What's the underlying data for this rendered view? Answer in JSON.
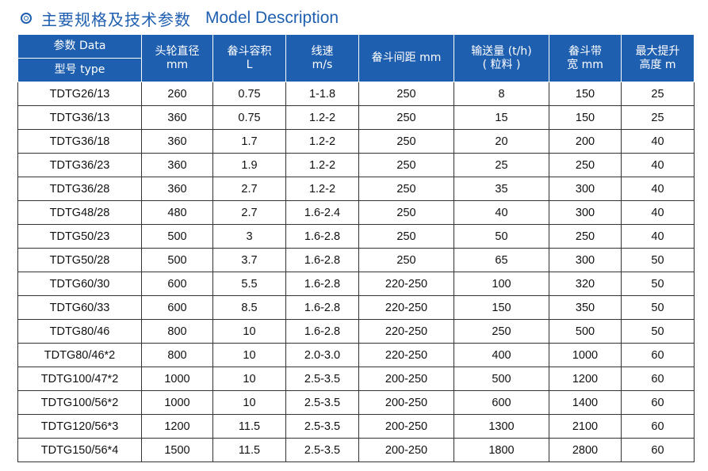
{
  "header": {
    "title_cn": "主要规格及技术参数",
    "title_en": "Model Description"
  },
  "table": {
    "corner_top": "参数 Data",
    "corner_bottom": "型号 type",
    "columns": [
      {
        "line1": "头轮直径",
        "line2": "mm"
      },
      {
        "line1": "畚斗容积",
        "line2": "L"
      },
      {
        "line1": "线速",
        "line2": "m/s"
      },
      {
        "line1": "畚斗间距 mm",
        "line2": ""
      },
      {
        "line1": "输送量 (t/h)",
        "line2": "( 粒料 )"
      },
      {
        "line1": "畚斗带",
        "line2": "宽 mm"
      },
      {
        "line1": "最大提升",
        "line2": "高度 m"
      }
    ],
    "rows": [
      [
        "TDTG26/13",
        "260",
        "0.75",
        "1-1.8",
        "250",
        "8",
        "150",
        "25"
      ],
      [
        "TDTG36/13",
        "360",
        "0.75",
        "1.2-2",
        "250",
        "15",
        "150",
        "25"
      ],
      [
        "TDTG36/18",
        "360",
        "1.7",
        "1.2-2",
        "250",
        "20",
        "200",
        "40"
      ],
      [
        "TDTG36/23",
        "360",
        "1.9",
        "1.2-2",
        "250",
        "25",
        "250",
        "40"
      ],
      [
        "TDTG36/28",
        "360",
        "2.7",
        "1.2-2",
        "250",
        "35",
        "300",
        "40"
      ],
      [
        "TDTG48/28",
        "480",
        "2.7",
        "1.6-2.4",
        "250",
        "40",
        "300",
        "40"
      ],
      [
        "TDTG50/23",
        "500",
        "3",
        "1.6-2.8",
        "250",
        "50",
        "250",
        "40"
      ],
      [
        "TDTG50/28",
        "500",
        "3.7",
        "1.6-2.8",
        "250",
        "65",
        "300",
        "50"
      ],
      [
        "TDTG60/30",
        "600",
        "5.5",
        "1.6-2.8",
        "220-250",
        "100",
        "320",
        "50"
      ],
      [
        "TDTG60/33",
        "600",
        "8.5",
        "1.6-2.8",
        "220-250",
        "150",
        "350",
        "50"
      ],
      [
        "TDTG80/46",
        "800",
        "10",
        "1.6-2.8",
        "220-250",
        "250",
        "500",
        "50"
      ],
      [
        "TDTG80/46*2",
        "800",
        "10",
        "2.0-3.0",
        "220-250",
        "400",
        "1000",
        "60"
      ],
      [
        "TDTG100/47*2",
        "1000",
        "10",
        "2.5-3.5",
        "200-250",
        "500",
        "1200",
        "60"
      ],
      [
        "TDTG100/56*2",
        "1000",
        "10",
        "2.5-3.5",
        "200-250",
        "600",
        "1400",
        "60"
      ],
      [
        "TDTG120/56*3",
        "1200",
        "11.5",
        "2.5-3.5",
        "200-250",
        "1300",
        "2100",
        "60"
      ],
      [
        "TDTG150/56*4",
        "1500",
        "11.5",
        "2.5-3.5",
        "200-250",
        "1800",
        "2800",
        "60"
      ]
    ]
  }
}
